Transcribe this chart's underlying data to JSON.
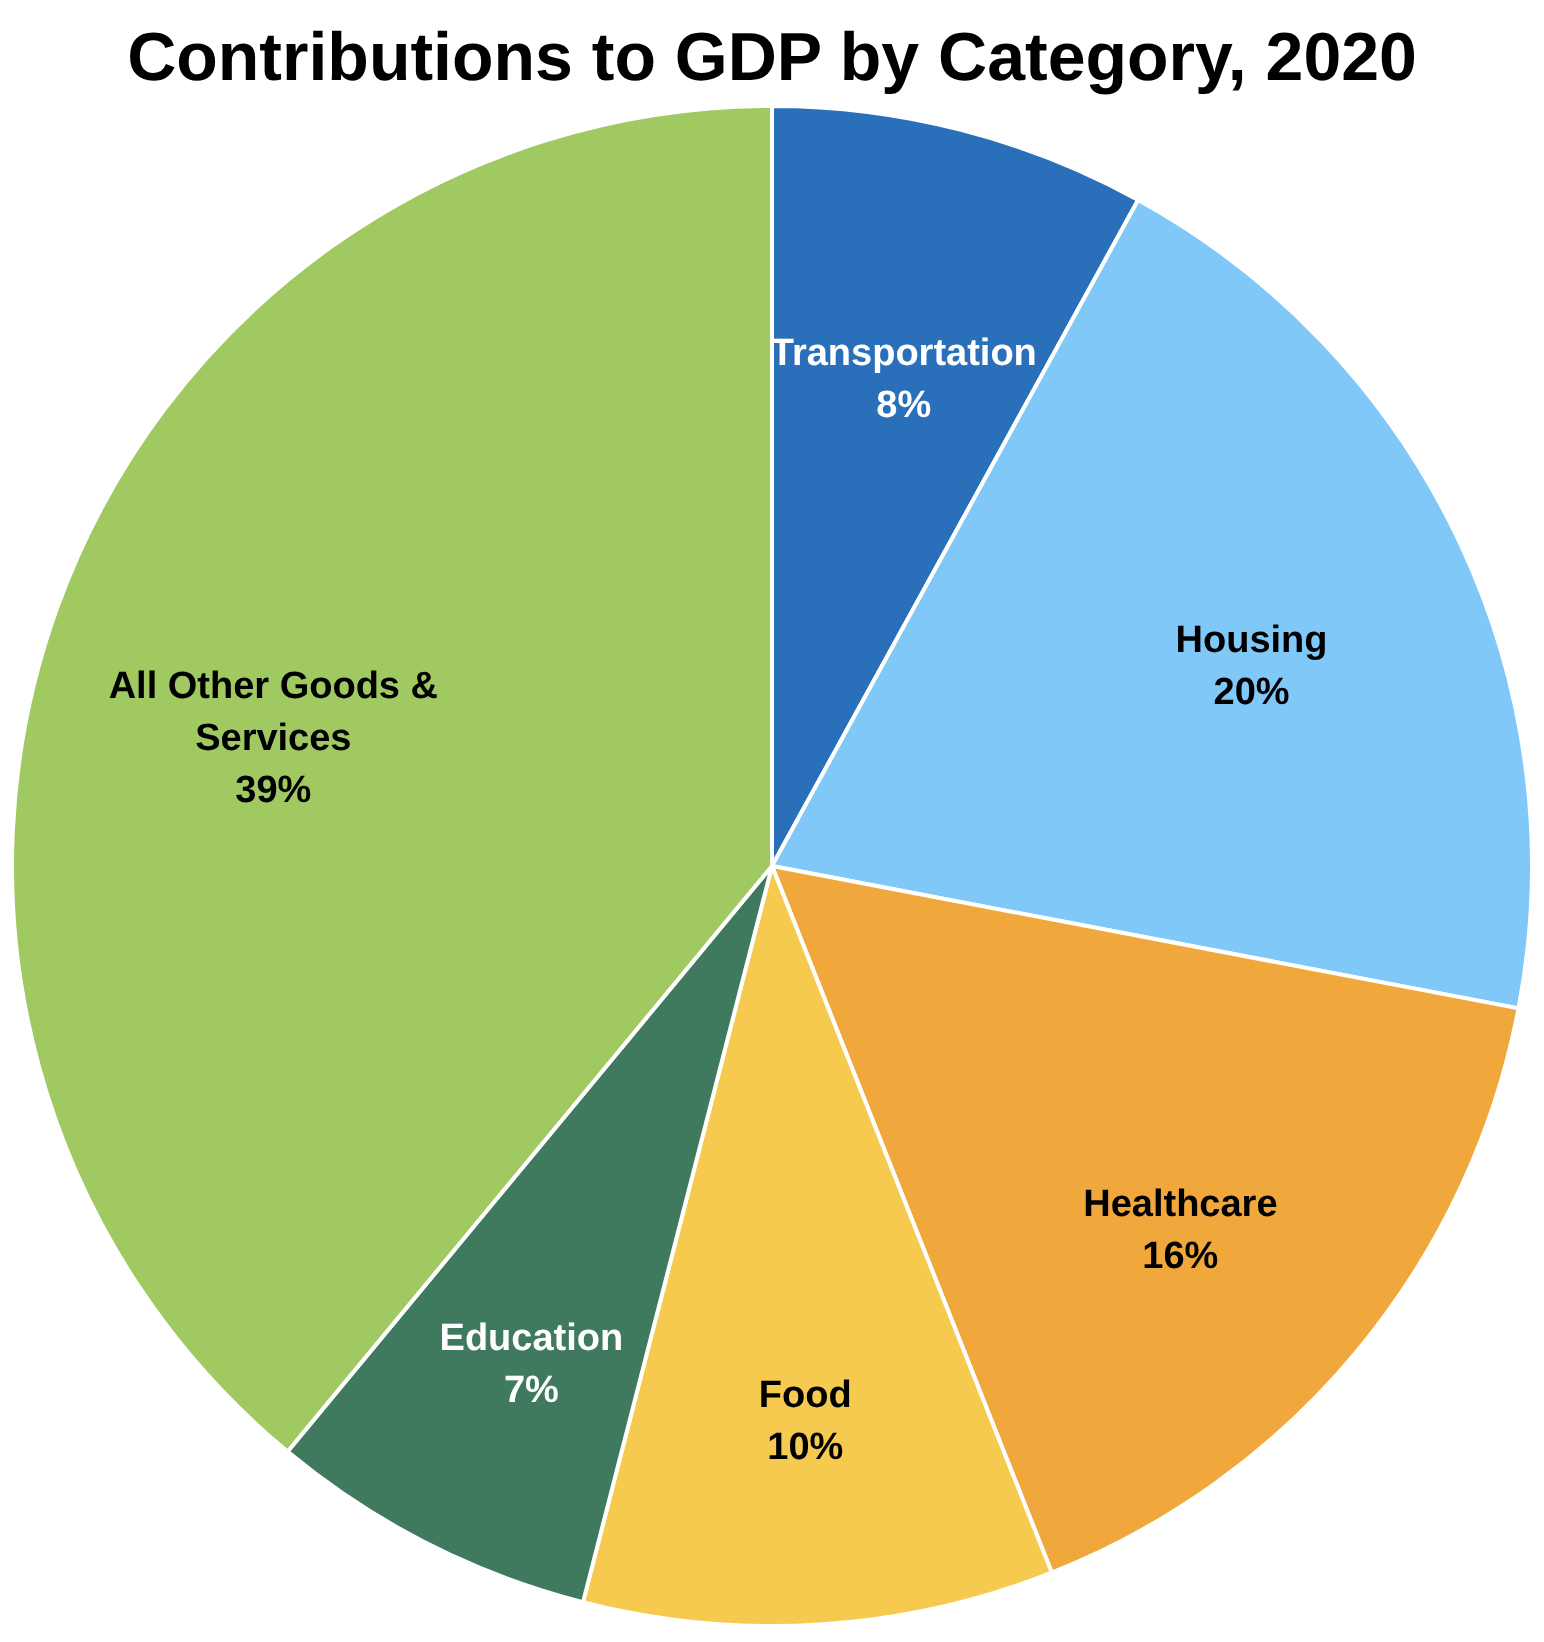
{
  "chart_data": {
    "type": "pie",
    "title": "Contributions to GDP by Category, 2020",
    "categories": [
      "Transportation",
      "Housing",
      "Healthcare",
      "Food",
      "Education",
      "All Other Goods & Services"
    ],
    "values": [
      8,
      20,
      16,
      10,
      7,
      39
    ],
    "colors": [
      "#2a6fba",
      "#7fc8f8",
      "#f0a83c",
      "#f6ca4f",
      "#3f7a5e",
      "#a1c962"
    ],
    "value_labels": [
      "8%",
      "20%",
      "16%",
      "10%",
      "7%",
      "39%"
    ]
  }
}
